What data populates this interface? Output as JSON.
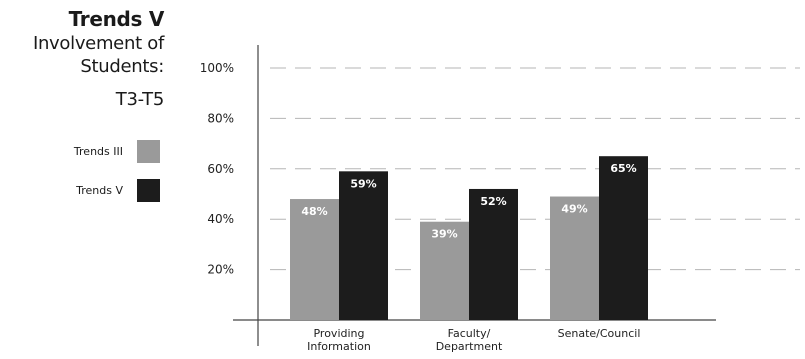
{
  "title": {
    "main": "Trends V",
    "subtitle": "Involvement of Students:",
    "range": "T3-T5"
  },
  "legend": {
    "items": [
      {
        "label": "Trends III",
        "color": "#9a9a9a"
      },
      {
        "label": "Trends V",
        "color": "#1c1c1c"
      }
    ]
  },
  "chart_data": {
    "type": "bar",
    "categories": [
      [
        "Providing",
        "Information"
      ],
      [
        "Faculty/",
        "Department"
      ],
      [
        "Senate/Council"
      ]
    ],
    "series": [
      {
        "name": "Trends III",
        "values": [
          48,
          39,
          49
        ],
        "color": "#9a9a9a",
        "labels": [
          "48%",
          "39%",
          "49%"
        ]
      },
      {
        "name": "Trends V",
        "values": [
          59,
          52,
          65
        ],
        "color": "#1c1c1c",
        "labels": [
          "59%",
          "52%",
          "65%"
        ]
      }
    ],
    "yticks": [
      "20%",
      "40%",
      "60%",
      "80%",
      "100%"
    ],
    "ylim": [
      0,
      100
    ],
    "grid": true,
    "grid_style": "dashed",
    "legend_position": "left"
  }
}
